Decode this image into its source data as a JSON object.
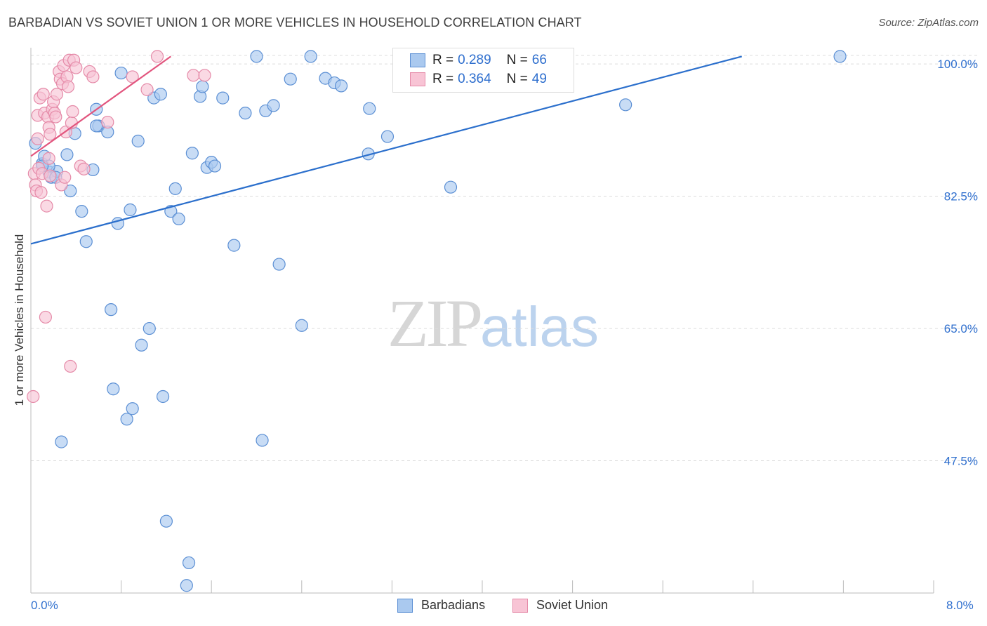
{
  "header": {
    "title": "BARBADIAN VS SOVIET UNION 1 OR MORE VEHICLES IN HOUSEHOLD CORRELATION CHART",
    "source": "Source: ZipAtlas.com"
  },
  "watermark": {
    "zip": "ZIP",
    "atlas": "atlas"
  },
  "legend": {
    "rows": [
      {
        "r_label": "R =",
        "r_value": "0.289",
        "n_label": "N =",
        "n_value": "66"
      },
      {
        "r_label": "R =",
        "r_value": "0.364",
        "n_label": "N =",
        "n_value": "49"
      }
    ]
  },
  "bottom_legend": {
    "series1": "Barbadians",
    "series2": "Soviet Union"
  },
  "x_axis": {
    "min_label": "0.0%",
    "max_label": "8.0%"
  },
  "colors": {
    "blue_fill": "#aac9ef",
    "blue_stroke": "#5b8fd4",
    "blue_line": "#2b6fcc",
    "pink_fill": "#f8c4d5",
    "pink_stroke": "#e58aa8",
    "pink_line": "#e2557e",
    "axis_text": "#2f6fce",
    "grid": "#dcdcdc"
  },
  "chart_data": {
    "type": "scatter",
    "title": "BARBADIAN VS SOVIET UNION 1 OR MORE VEHICLES IN HOUSEHOLD CORRELATION CHART",
    "xlabel": "",
    "ylabel": "1 or more Vehicles in Household",
    "xlim": [
      0.0,
      8.0
    ],
    "ylim": [
      30.0,
      101.5
    ],
    "y_ticks": [
      47.5,
      65.0,
      82.5,
      100.0
    ],
    "y_tick_labels": [
      "47.5%",
      "65.0%",
      "82.5%",
      "100.0%"
    ],
    "grid": true,
    "legend_position": "top-center",
    "series": [
      {
        "name": "Barbadians",
        "color": "#aac9ef",
        "r": 0.289,
        "n": 66,
        "trend": {
          "x": [
            0.0,
            6.3
          ],
          "y": [
            76.2,
            101.0
          ]
        },
        "points": [
          [
            0.04,
            89.5
          ],
          [
            0.1,
            86.8
          ],
          [
            0.12,
            87.8
          ],
          [
            0.16,
            85.7
          ],
          [
            0.18,
            85.0
          ],
          [
            0.23,
            85.8
          ],
          [
            0.32,
            88.0
          ],
          [
            0.35,
            83.2
          ],
          [
            0.39,
            90.8
          ],
          [
            0.45,
            80.5
          ],
          [
            0.49,
            76.5
          ],
          [
            0.55,
            86.0
          ],
          [
            0.58,
            94.0
          ],
          [
            0.6,
            91.8
          ],
          [
            0.68,
            91.0
          ],
          [
            0.71,
            67.5
          ],
          [
            0.73,
            57.0
          ],
          [
            0.77,
            78.9
          ],
          [
            0.8,
            98.8
          ],
          [
            0.85,
            53.0
          ],
          [
            0.88,
            80.7
          ],
          [
            0.9,
            54.4
          ],
          [
            0.95,
            89.8
          ],
          [
            0.98,
            62.8
          ],
          [
            1.05,
            65.0
          ],
          [
            1.09,
            95.5
          ],
          [
            1.15,
            96.0
          ],
          [
            1.17,
            56.0
          ],
          [
            1.2,
            39.5
          ],
          [
            1.24,
            80.5
          ],
          [
            1.28,
            83.5
          ],
          [
            1.31,
            79.5
          ],
          [
            1.38,
            31.0
          ],
          [
            1.4,
            34.0
          ],
          [
            1.43,
            88.2
          ],
          [
            1.5,
            95.7
          ],
          [
            1.52,
            97.0
          ],
          [
            1.56,
            86.3
          ],
          [
            1.6,
            87.0
          ],
          [
            1.63,
            86.5
          ],
          [
            1.7,
            95.5
          ],
          [
            1.8,
            76.0
          ],
          [
            1.9,
            93.5
          ],
          [
            2.0,
            101.0
          ],
          [
            2.05,
            50.2
          ],
          [
            2.08,
            93.8
          ],
          [
            2.15,
            94.5
          ],
          [
            2.2,
            73.5
          ],
          [
            2.3,
            98.0
          ],
          [
            2.4,
            65.4
          ],
          [
            2.48,
            101.0
          ],
          [
            2.61,
            98.1
          ],
          [
            2.69,
            97.5
          ],
          [
            2.75,
            97.1
          ],
          [
            2.99,
            88.1
          ],
          [
            3.0,
            94.1
          ],
          [
            3.16,
            90.4
          ],
          [
            3.72,
            83.7
          ],
          [
            4.37,
            101.0
          ],
          [
            5.27,
            94.6
          ],
          [
            7.17,
            101.0
          ],
          [
            0.27,
            50.0
          ],
          [
            0.16,
            86.5
          ],
          [
            0.1,
            86.5
          ],
          [
            0.22,
            85.0
          ],
          [
            0.58,
            91.8
          ]
        ]
      },
      {
        "name": "Soviet Union",
        "color": "#f8c4d5",
        "r": 0.364,
        "n": 49,
        "trend": {
          "x": [
            0.0,
            1.24
          ],
          "y": [
            87.8,
            101.0
          ]
        },
        "points": [
          [
            0.02,
            56.0
          ],
          [
            0.03,
            85.5
          ],
          [
            0.04,
            84.0
          ],
          [
            0.05,
            83.2
          ],
          [
            0.06,
            90.1
          ],
          [
            0.06,
            93.2
          ],
          [
            0.07,
            86.2
          ],
          [
            0.08,
            95.5
          ],
          [
            0.09,
            83.0
          ],
          [
            0.1,
            85.5
          ],
          [
            0.11,
            96.0
          ],
          [
            0.12,
            93.5
          ],
          [
            0.13,
            66.5
          ],
          [
            0.14,
            81.2
          ],
          [
            0.15,
            93.0
          ],
          [
            0.16,
            91.6
          ],
          [
            0.16,
            87.5
          ],
          [
            0.17,
            90.7
          ],
          [
            0.19,
            94.0
          ],
          [
            0.2,
            95.0
          ],
          [
            0.21,
            93.5
          ],
          [
            0.22,
            93.0
          ],
          [
            0.23,
            96.0
          ],
          [
            0.25,
            99.0
          ],
          [
            0.26,
            98.0
          ],
          [
            0.27,
            84.0
          ],
          [
            0.28,
            97.4
          ],
          [
            0.29,
            99.8
          ],
          [
            0.3,
            85.0
          ],
          [
            0.31,
            91.0
          ],
          [
            0.32,
            98.3
          ],
          [
            0.33,
            97.0
          ],
          [
            0.34,
            100.5
          ],
          [
            0.35,
            60.0
          ],
          [
            0.36,
            92.2
          ],
          [
            0.37,
            93.7
          ],
          [
            0.38,
            100.5
          ],
          [
            0.4,
            99.5
          ],
          [
            0.44,
            86.5
          ],
          [
            0.47,
            86.1
          ],
          [
            0.52,
            99.0
          ],
          [
            0.55,
            98.3
          ],
          [
            0.68,
            92.3
          ],
          [
            0.9,
            98.3
          ],
          [
            1.03,
            96.6
          ],
          [
            1.12,
            101.0
          ],
          [
            1.44,
            98.5
          ],
          [
            1.54,
            98.5
          ],
          [
            0.17,
            85.2
          ]
        ]
      }
    ]
  }
}
